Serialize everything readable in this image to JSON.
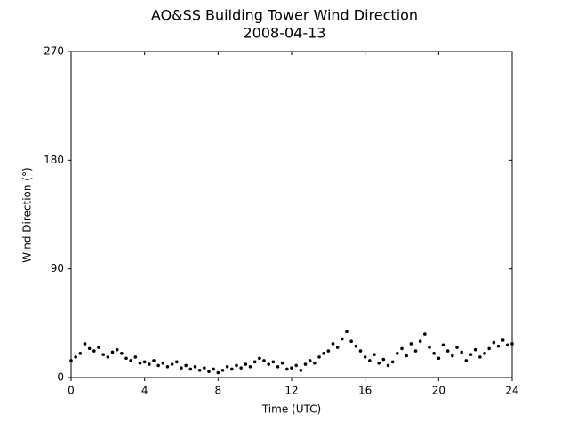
{
  "chart_data": {
    "type": "scatter",
    "title": "AO&SS Building Tower Wind Direction",
    "subtitle": "2008-04-13",
    "x_label": "Time (UTC)",
    "y_label": "Wind Direction (°)",
    "color": "#000000",
    "xlim": [
      0,
      24
    ],
    "xticks": [
      0,
      4,
      8,
      12,
      16,
      20,
      24
    ],
    "ylim": [
      0,
      270
    ],
    "yticks": [
      0,
      90,
      180,
      270
    ],
    "x": [
      0,
      0.25,
      0.5,
      0.75,
      1,
      1.25,
      1.5,
      1.75,
      2,
      2.25,
      2.5,
      2.75,
      3,
      3.25,
      3.5,
      3.75,
      4,
      4.25,
      4.5,
      4.75,
      5,
      5.25,
      5.5,
      5.75,
      6,
      6.25,
      6.5,
      6.75,
      7,
      7.25,
      7.5,
      7.75,
      8,
      8.25,
      8.5,
      8.75,
      9,
      9.25,
      9.5,
      9.75,
      10,
      10.25,
      10.5,
      10.75,
      11,
      11.25,
      11.5,
      11.75,
      12,
      12.25,
      12.5,
      12.75,
      13,
      13.25,
      13.5,
      13.75,
      14,
      14.25,
      14.5,
      14.75,
      15,
      15.25,
      15.5,
      15.75,
      16,
      16.25,
      16.5,
      16.75,
      17,
      17.25,
      17.5,
      17.75,
      18,
      18.25,
      18.5,
      18.75,
      19,
      19.25,
      19.5,
      19.75,
      20,
      20.25,
      20.5,
      20.75,
      21,
      21.25,
      21.5,
      21.75,
      22,
      22.25,
      22.5,
      22.75,
      23,
      23.25,
      23.5,
      23.75,
      24
    ],
    "values": [
      14,
      17,
      20,
      28,
      24,
      22,
      25,
      19,
      17,
      21,
      23,
      20,
      16,
      14,
      17,
      12,
      13,
      11,
      14,
      10,
      12,
      9,
      11,
      13,
      8,
      10,
      7,
      9,
      6,
      8,
      5,
      7,
      4,
      6,
      9,
      7,
      10,
      8,
      11,
      9,
      13,
      16,
      14,
      11,
      13,
      9,
      12,
      7,
      8,
      10,
      6,
      11,
      14,
      12,
      17,
      20,
      22,
      28,
      25,
      32,
      38,
      30,
      26,
      22,
      17,
      14,
      19,
      12,
      15,
      10,
      13,
      20,
      24,
      18,
      28,
      22,
      30,
      36,
      25,
      20,
      16,
      27,
      22,
      18,
      25,
      21,
      14,
      19,
      23,
      17,
      20,
      24,
      29,
      26,
      31,
      27,
      28
    ]
  }
}
